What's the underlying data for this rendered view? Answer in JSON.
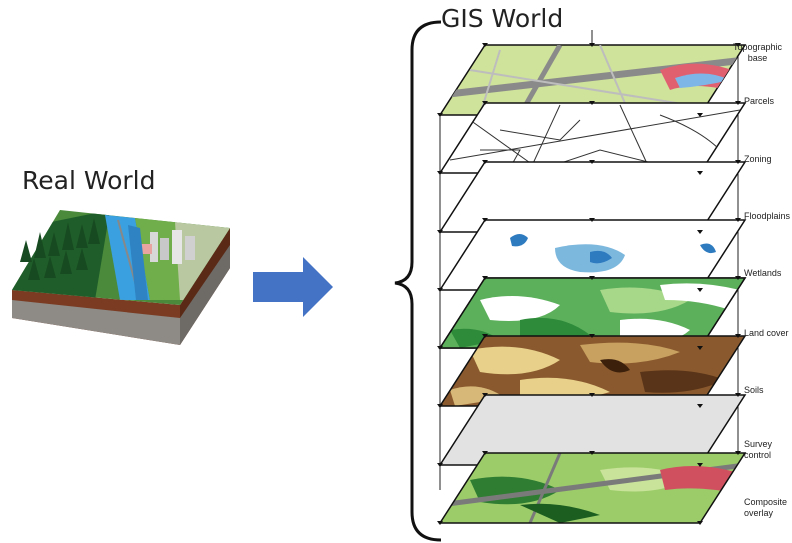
{
  "real_world": {
    "title": "Real World",
    "image_icon": "3d-landscape-block"
  },
  "arrow": {
    "icon": "right-arrow",
    "color": "#4472c4"
  },
  "gis_world": {
    "title": "GIS World",
    "layers": [
      {
        "name": "Topographic\nbase",
        "line1": "Topographic",
        "line2": "base"
      },
      {
        "name": "Parcels"
      },
      {
        "name": "Zoning"
      },
      {
        "name": "Floodplains"
      },
      {
        "name": "Wetlands"
      },
      {
        "name": "Land cover"
      },
      {
        "name": "Soils"
      },
      {
        "name": "Survey\ncontrol",
        "line1": "Survey",
        "line2": "control"
      },
      {
        "name": "Composite\noverlay",
        "line1": "Composite",
        "line2": "overlay"
      }
    ]
  }
}
